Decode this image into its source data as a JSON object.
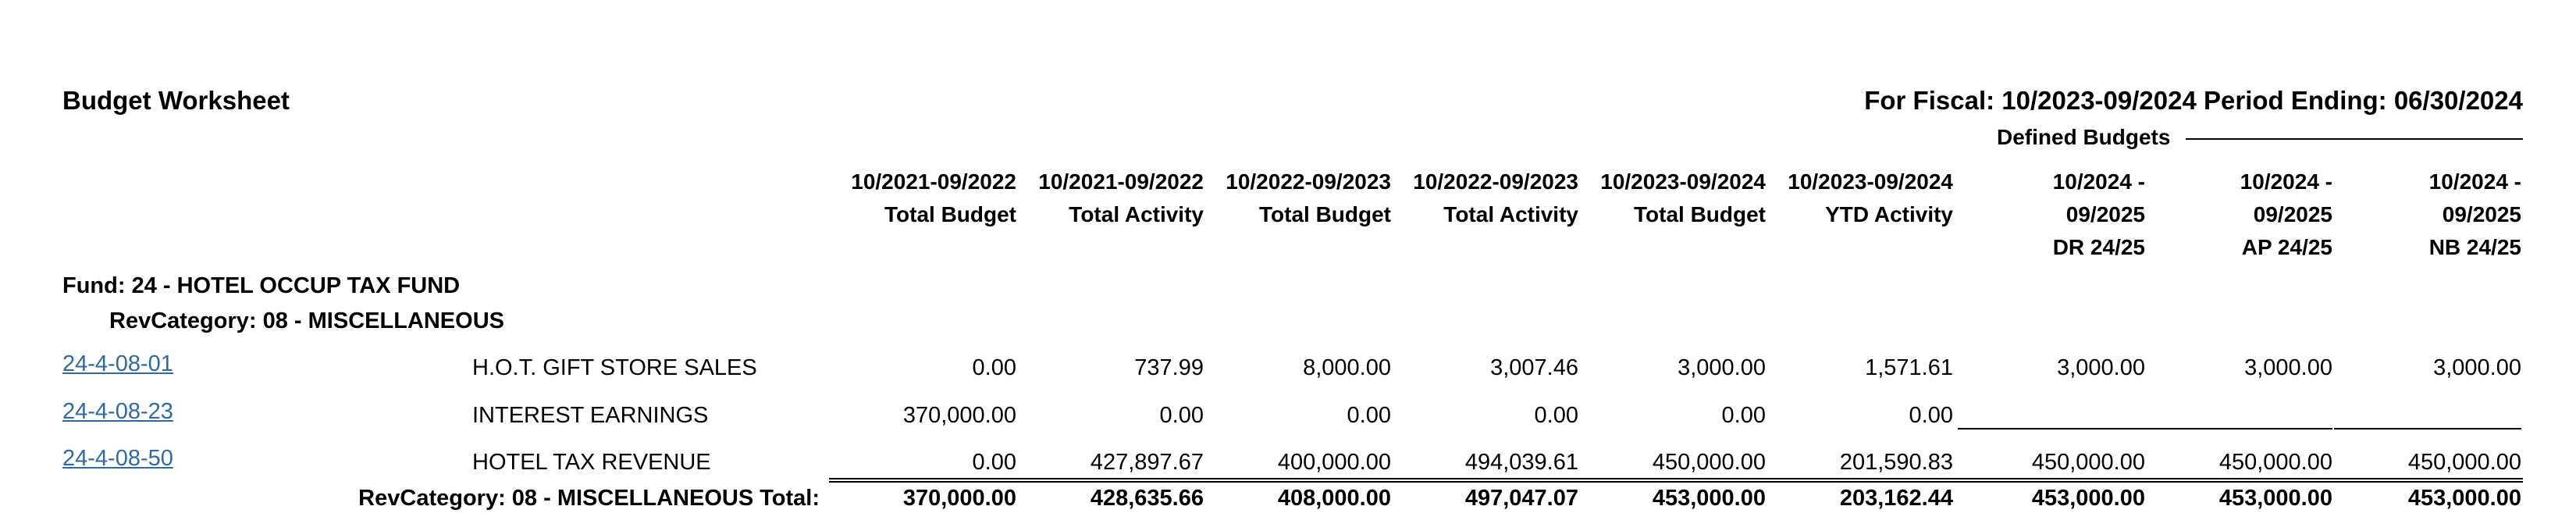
{
  "report": {
    "title": "Budget Worksheet",
    "fiscal": "For Fiscal: 10/2023-09/2024 Period Ending: 06/30/2024",
    "defined_budgets_label": "Defined Budgets"
  },
  "columns": [
    {
      "line1": "10/2021-09/2022",
      "line2": "Total Budget"
    },
    {
      "line1": "10/2021-09/2022",
      "line2": "Total Activity"
    },
    {
      "line1": "10/2022-09/2023",
      "line2": "Total Budget"
    },
    {
      "line1": "10/2022-09/2023",
      "line2": "Total Activity"
    },
    {
      "line1": "10/2023-09/2024",
      "line2": "Total Budget"
    },
    {
      "line1": "10/2023-09/2024",
      "line2": "YTD Activity"
    },
    {
      "line1": "10/2024 -",
      "line2": "09/2025",
      "line3": "DR 24/25"
    },
    {
      "line1": "10/2024 -",
      "line2": "09/2025",
      "line3": "AP 24/25"
    },
    {
      "line1": "10/2024 -",
      "line2": "09/2025",
      "line3": "NB 24/25"
    }
  ],
  "fund": {
    "label": "Fund: 24 - HOTEL OCCUP TAX FUND",
    "revcategory": "RevCategory: 08 - MISCELLANEOUS"
  },
  "rows": [
    {
      "account": "24-4-08-01",
      "description": "H.O.T. GIFT STORE SALES",
      "values": [
        "0.00",
        "737.99",
        "8,000.00",
        "3,007.46",
        "3,000.00",
        "1,571.61",
        "3,000.00",
        "3,000.00",
        "3,000.00"
      ]
    },
    {
      "account": "24-4-08-23",
      "description": "INTEREST EARNINGS",
      "values": [
        "370,000.00",
        "0.00",
        "0.00",
        "0.00",
        "0.00",
        "0.00",
        "",
        "",
        ""
      ]
    },
    {
      "account": "24-4-08-50",
      "description": "HOTEL TAX REVENUE",
      "values": [
        "0.00",
        "427,897.67",
        "400,000.00",
        "494,039.61",
        "450,000.00",
        "201,590.83",
        "450,000.00",
        "450,000.00",
        "450,000.00"
      ]
    }
  ],
  "total": {
    "label": "RevCategory: 08 - MISCELLANEOUS Total:",
    "values": [
      "370,000.00",
      "428,635.66",
      "408,000.00",
      "497,047.07",
      "453,000.00",
      "203,162.44",
      "453,000.00",
      "453,000.00",
      "453,000.00"
    ]
  }
}
